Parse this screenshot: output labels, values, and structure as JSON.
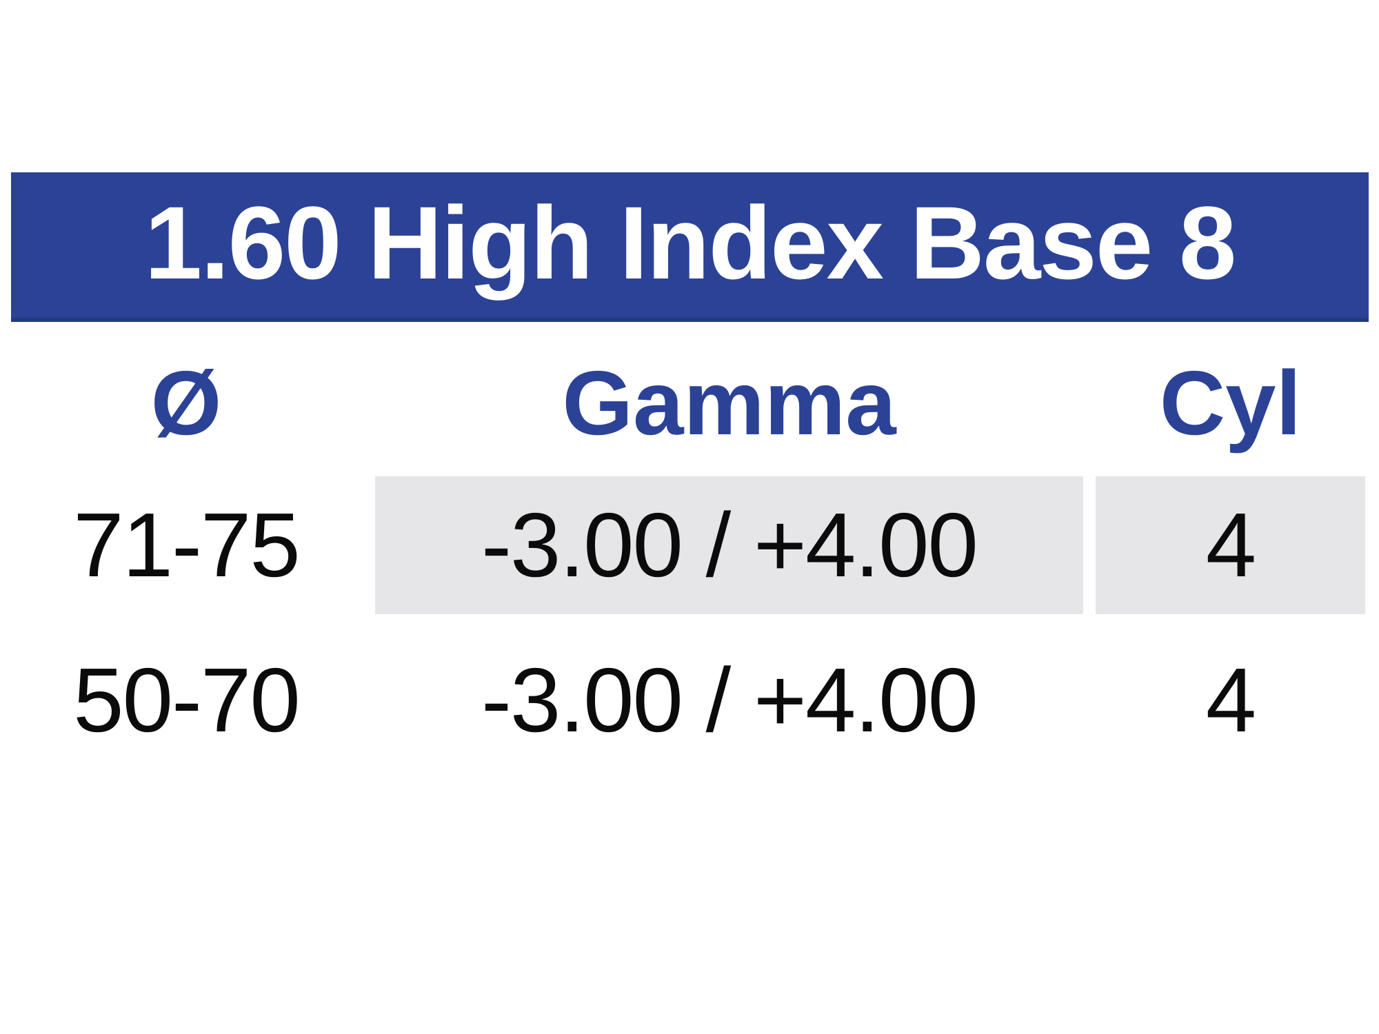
{
  "table": {
    "title": "1.60 High Index Base 8",
    "columns": [
      {
        "key": "diameter",
        "label": "Ø"
      },
      {
        "key": "gamma",
        "label": "Gamma"
      },
      {
        "key": "cyl",
        "label": "Cyl"
      }
    ],
    "rows": [
      {
        "diameter": "71-75",
        "gamma": "-3.00 / +4.00",
        "cyl": "4",
        "highlighted": true
      },
      {
        "diameter": "50-70",
        "gamma": "-3.00 / +4.00",
        "cyl": "4",
        "highlighted": false
      }
    ],
    "colors": {
      "banner_bg": "#2B4296",
      "banner_border": "#233A7E",
      "banner_text": "#FFFFFF",
      "column_header_text": "#2B4296",
      "row_highlight_bg": "#E6E6E8",
      "body_text": "#0B0B0B"
    }
  }
}
